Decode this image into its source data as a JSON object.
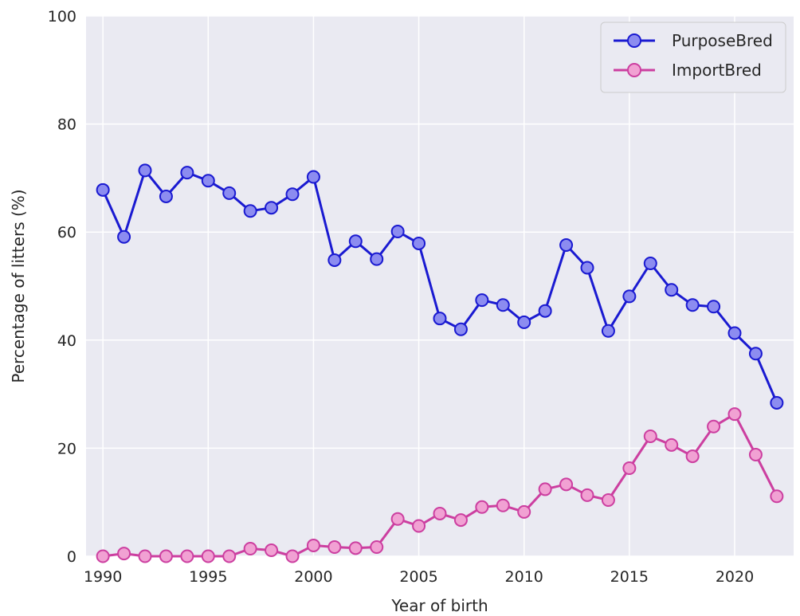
{
  "chart_data": {
    "type": "line",
    "title": "",
    "xlabel": "Year of birth",
    "ylabel": "Percentage of litters (%)",
    "xlim": [
      1989.2,
      2022.8
    ],
    "ylim": [
      0,
      100
    ],
    "xticks": [
      1990,
      1995,
      2000,
      2005,
      2010,
      2015,
      2020
    ],
    "yticks": [
      0,
      20,
      40,
      60,
      80,
      100
    ],
    "grid": true,
    "legend_position": "top-right",
    "x": [
      1990,
      1991,
      1992,
      1993,
      1994,
      1995,
      1996,
      1997,
      1998,
      1999,
      2000,
      2001,
      2002,
      2003,
      2004,
      2005,
      2006,
      2007,
      2008,
      2009,
      2010,
      2011,
      2012,
      2013,
      2014,
      2015,
      2016,
      2017,
      2018,
      2019,
      2020,
      2021,
      2022
    ],
    "series": [
      {
        "name": "PurposeBred",
        "line_color": "#1a1ad1",
        "marker_fill": "#8c8cf0",
        "values": [
          67.8,
          59.1,
          71.4,
          66.6,
          71.0,
          69.5,
          67.2,
          63.9,
          64.5,
          67.0,
          70.2,
          54.8,
          58.3,
          55.0,
          60.1,
          57.9,
          44.0,
          42.0,
          47.4,
          46.5,
          43.3,
          45.4,
          57.6,
          53.4,
          41.7,
          48.1,
          54.2,
          49.3,
          46.5,
          46.2,
          41.3,
          37.5,
          28.4
        ]
      },
      {
        "name": "ImportBred",
        "line_color": "#cc3fa0",
        "marker_fill": "#f1a1d3",
        "values": [
          0.0,
          0.5,
          0.0,
          0.0,
          0.0,
          0.0,
          0.0,
          1.4,
          1.1,
          0.0,
          2.0,
          1.7,
          1.5,
          1.7,
          6.9,
          5.6,
          7.9,
          6.7,
          9.1,
          9.4,
          8.2,
          12.4,
          13.3,
          11.3,
          10.4,
          16.3,
          22.2,
          20.6,
          18.5,
          24.0,
          26.3,
          18.8,
          11.1
        ]
      }
    ]
  },
  "colors": {
    "plot_background": "#eaeaf2",
    "grid": "#ffffff",
    "text": "#262626"
  }
}
